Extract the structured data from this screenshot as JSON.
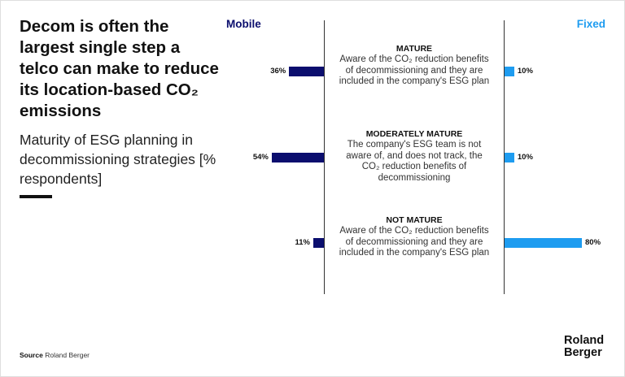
{
  "header": {
    "title": "Decom is often the largest single step a telco can make to reduce its location-based CO₂ emissions",
    "subtitle": "Maturity of ESG planning in decommissioning strategies [% respondents]"
  },
  "legend": {
    "mobile": "Mobile",
    "fixed": "Fixed"
  },
  "colors": {
    "mobile": "#0b0e6e",
    "fixed": "#1e9cf0"
  },
  "chart_data": {
    "type": "bar",
    "orientation": "horizontal-butterfly",
    "unit": "%",
    "categories": [
      {
        "name": "MATURE",
        "description": "Aware of the CO₂ reduction benefits of decommissioning and they are included in the company's ESG plan"
      },
      {
        "name": "MODERATELY MATURE",
        "description": "The company's ESG team is not aware of, and does not track, the CO₂ reduction benefits of decommissioning"
      },
      {
        "name": "NOT MATURE",
        "description": "Aware of the CO₂ reduction benefits of decommissioning and they are included in the company's ESG plan"
      }
    ],
    "series": [
      {
        "name": "Mobile",
        "values": [
          36,
          54,
          11
        ],
        "labels": [
          "36%",
          "54%",
          "11%"
        ]
      },
      {
        "name": "Fixed",
        "values": [
          10,
          10,
          80
        ],
        "labels": [
          "10%",
          "10%",
          "80%"
        ]
      }
    ],
    "xlim": [
      0,
      100
    ]
  },
  "footer": {
    "source_label": "Source",
    "source_text": "Roland Berger",
    "logo_line1": "Roland",
    "logo_line2": "Berger"
  }
}
